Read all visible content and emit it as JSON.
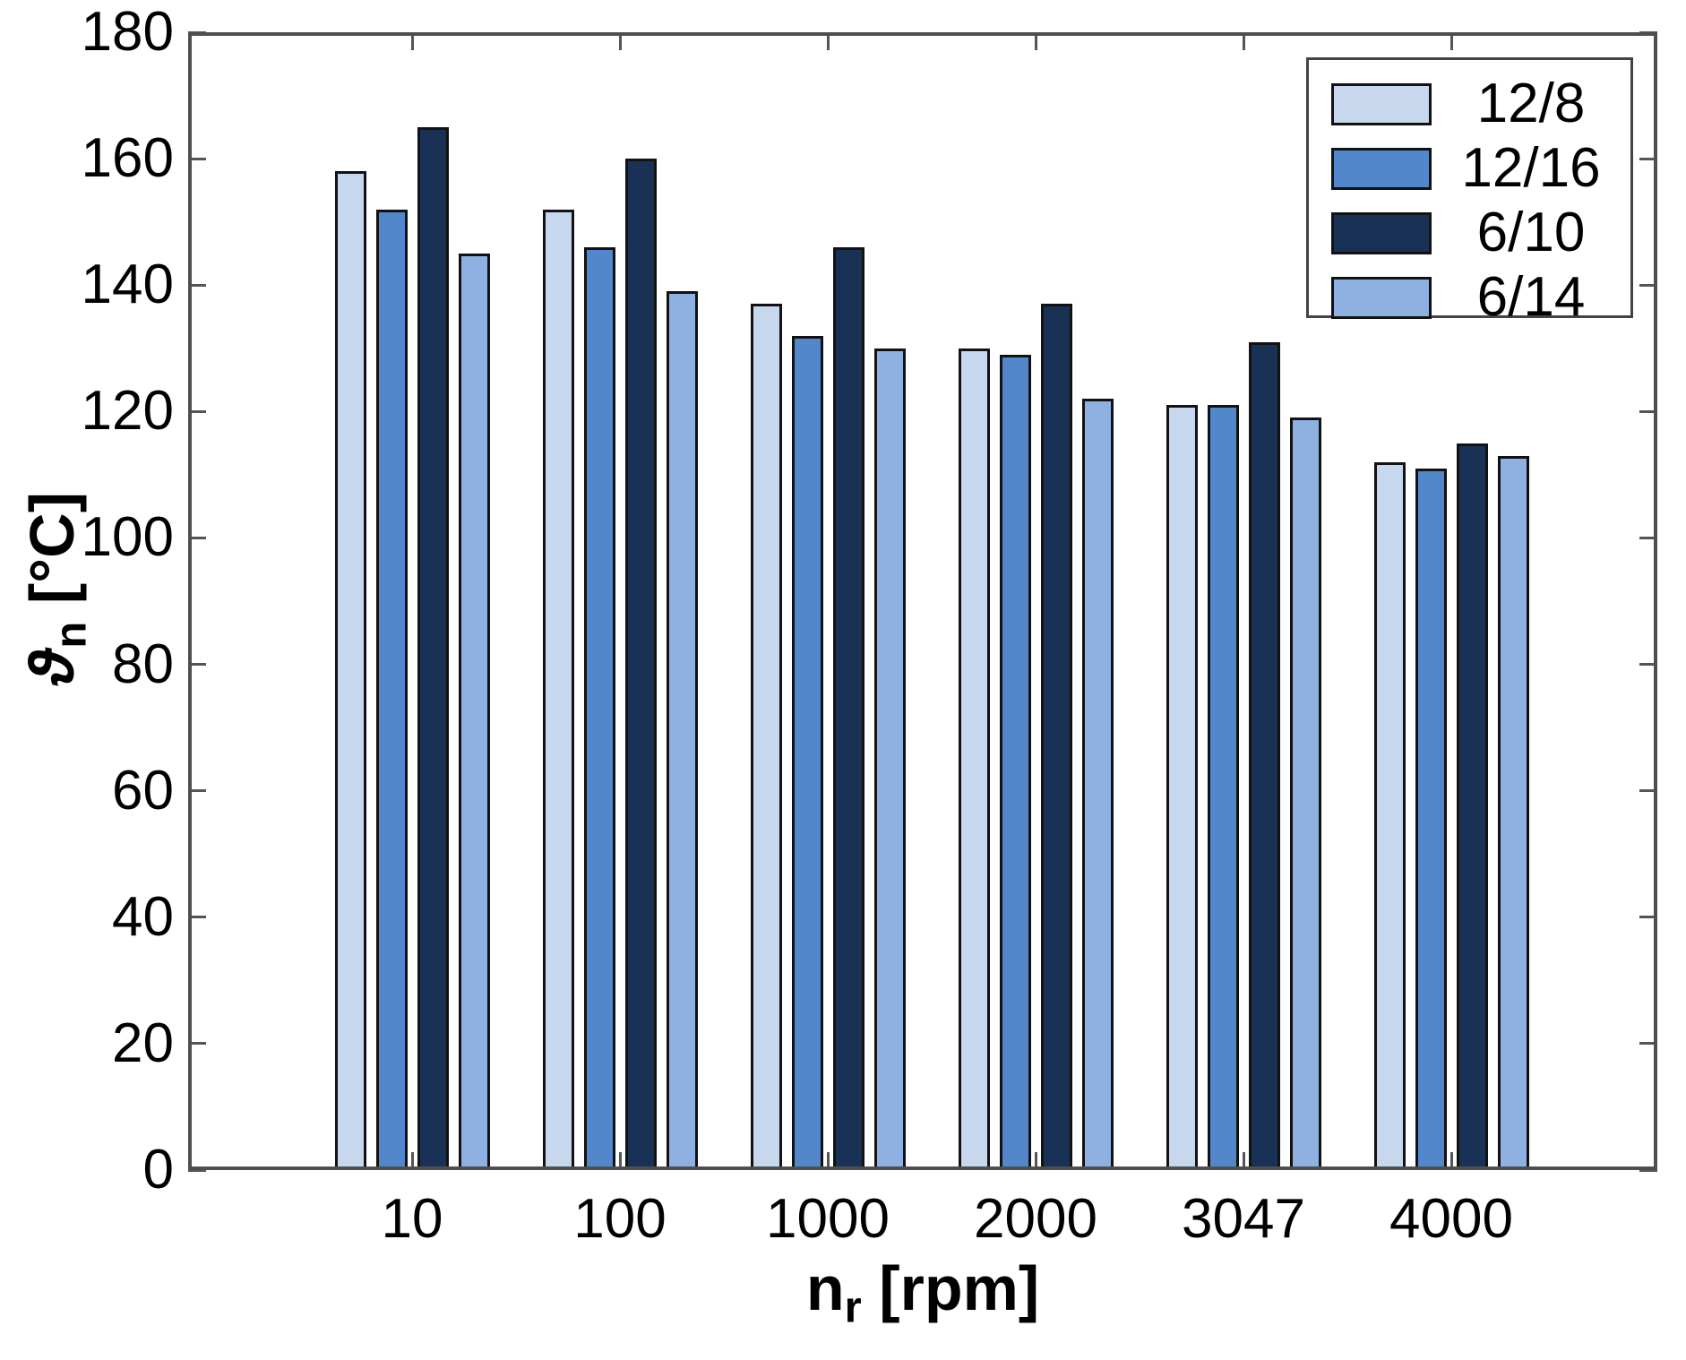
{
  "chart_data": {
    "type": "bar",
    "title": "",
    "categories": [
      "10",
      "100",
      "1000",
      "2000",
      "3047",
      "4000"
    ],
    "series": [
      {
        "name": "12/8",
        "color": "#C7D7EE",
        "values": [
          158,
          152,
          137,
          130,
          121,
          112
        ]
      },
      {
        "name": "12/16",
        "color": "#5287CC",
        "values": [
          152,
          146,
          132,
          129,
          121,
          111
        ]
      },
      {
        "name": "6/10",
        "color": "#1A3156",
        "values": [
          165,
          160,
          146,
          137,
          131,
          115
        ]
      },
      {
        "name": "6/14",
        "color": "#8EB1E2",
        "values": [
          145,
          139,
          130,
          122,
          119,
          113
        ]
      }
    ],
    "xlabel": {
      "symbol": "n",
      "subscript": "r",
      "unit": "[rpm]"
    },
    "ylabel": {
      "symbol": "ϑ",
      "subscript": "n",
      "unit": "[°C]"
    },
    "ylim": [
      0,
      180
    ],
    "ytick_step": 20,
    "yticks": [
      0,
      20,
      40,
      60,
      80,
      100,
      120,
      140,
      160,
      180
    ],
    "grid": false,
    "legend_position": "top-right",
    "axis_color": "#4f4f4f",
    "bar_edge_color": "#121212"
  }
}
